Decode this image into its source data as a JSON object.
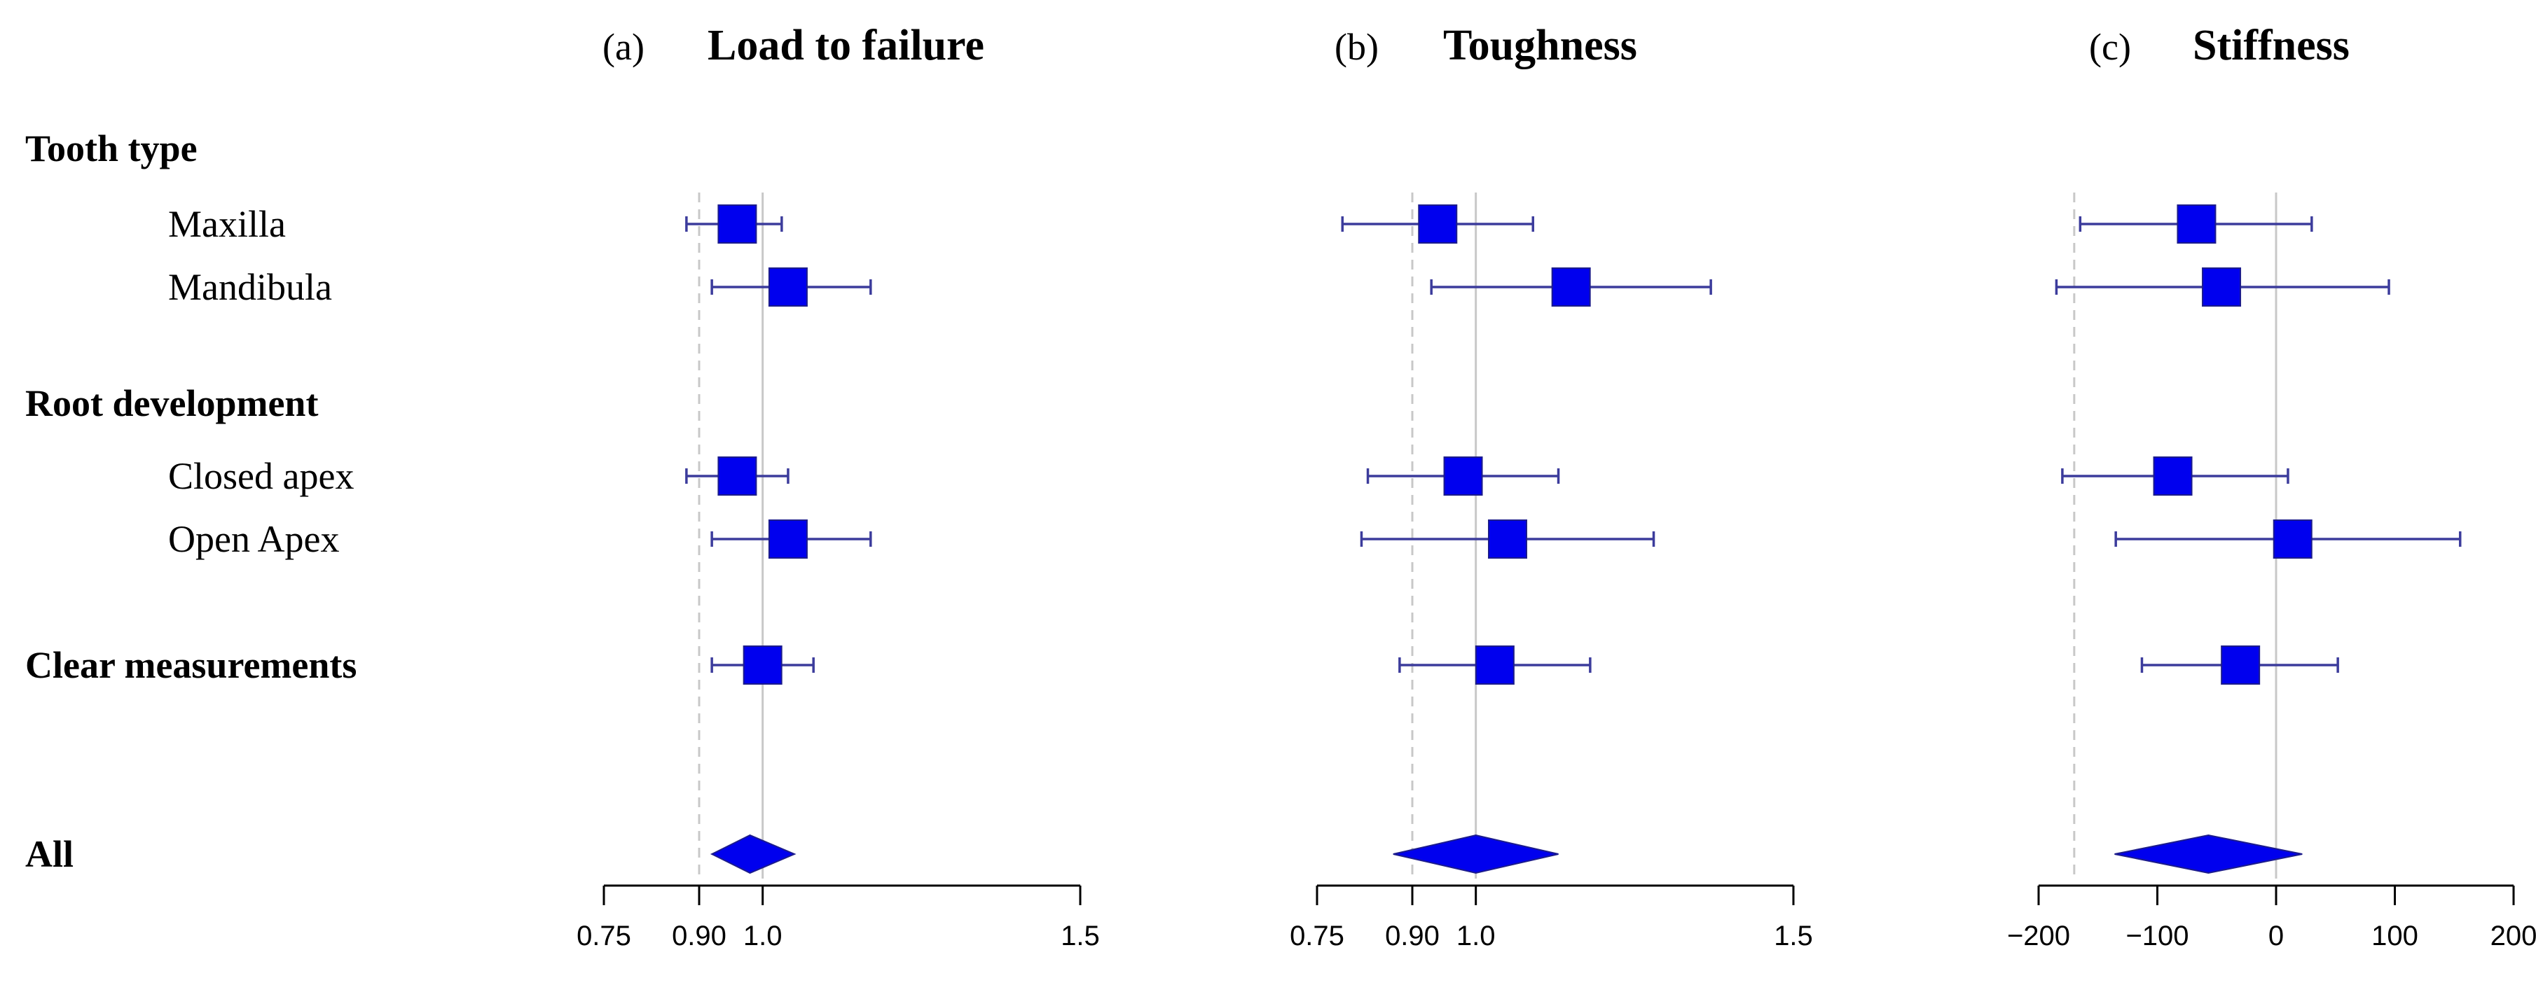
{
  "chart_data": {
    "type": "forest",
    "rows": [
      {
        "key": "tooth_type",
        "label": "Tooth type",
        "heading": true
      },
      {
        "key": "maxilla",
        "label": "Maxilla",
        "heading": false
      },
      {
        "key": "mandibula",
        "label": "Mandibula",
        "heading": false
      },
      {
        "key": "root_development",
        "label": "Root development",
        "heading": true
      },
      {
        "key": "closed_apex",
        "label": "Closed apex",
        "heading": false
      },
      {
        "key": "open_apex",
        "label": "Open Apex",
        "heading": false
      },
      {
        "key": "clear_measurements",
        "label": "Clear measurements",
        "heading": true
      },
      {
        "key": "all",
        "label": "All",
        "heading": true
      }
    ],
    "panels": [
      {
        "id": "a",
        "letter": "(a)",
        "title": "Load to failure",
        "xlim": [
          0.75,
          1.5
        ],
        "ticks": [
          0.75,
          0.9,
          1.0,
          1.5
        ],
        "tick_labels": [
          "0.75",
          "0.90",
          "1.0",
          "1.5"
        ],
        "dashed_ref": 0.9,
        "solid_ref": 1.0,
        "estimates": [
          {
            "row": "maxilla",
            "est": 0.96,
            "lo": 0.88,
            "hi": 1.03,
            "color": "#0000ee"
          },
          {
            "row": "mandibula",
            "est": 1.04,
            "lo": 0.92,
            "hi": 1.17,
            "color": "#0000ee"
          },
          {
            "row": "closed_apex",
            "est": 0.96,
            "lo": 0.88,
            "hi": 1.04,
            "color": "#0000ee"
          },
          {
            "row": "open_apex",
            "est": 1.04,
            "lo": 0.92,
            "hi": 1.17,
            "color": "#0000ee"
          },
          {
            "row": "clear_measurements",
            "est": 1.0,
            "lo": 0.92,
            "hi": 1.08,
            "color": "#0000ee"
          }
        ],
        "summary": {
          "row": "all",
          "est": 0.98,
          "lo": 0.92,
          "hi": 1.05
        }
      },
      {
        "id": "b",
        "letter": "(b)",
        "title": "Toughness",
        "xlim": [
          0.75,
          1.5
        ],
        "ticks": [
          0.75,
          0.9,
          1.0,
          1.5
        ],
        "tick_labels": [
          "0.75",
          "0.90",
          "1.0",
          "1.5"
        ],
        "dashed_ref": 0.9,
        "solid_ref": 1.0,
        "estimates": [
          {
            "row": "maxilla",
            "est": 0.94,
            "lo": 0.79,
            "hi": 1.09,
            "color": "#0000ee"
          },
          {
            "row": "mandibula",
            "est": 1.15,
            "lo": 0.93,
            "hi": 1.37,
            "color": "#0000ee"
          },
          {
            "row": "closed_apex",
            "est": 0.98,
            "lo": 0.83,
            "hi": 1.13,
            "color": "#0000ee"
          },
          {
            "row": "open_apex",
            "est": 1.05,
            "lo": 0.82,
            "hi": 1.28,
            "color": "#0000ee"
          },
          {
            "row": "clear_measurements",
            "est": 1.03,
            "lo": 0.88,
            "hi": 1.18,
            "color": "#0000ee"
          }
        ],
        "summary": {
          "row": "all",
          "est": 1.0,
          "lo": 0.87,
          "hi": 1.13
        }
      },
      {
        "id": "c",
        "letter": "(c)",
        "title": "Stiffness",
        "xlim": [
          -200,
          200
        ],
        "ticks": [
          -200,
          -100,
          0,
          100,
          200
        ],
        "tick_labels": [
          "−200",
          "−100",
          "0",
          "100",
          "200"
        ],
        "dashed_ref": -170,
        "solid_ref": 0,
        "estimates": [
          {
            "row": "maxilla",
            "est": -67,
            "lo": -165,
            "hi": 30,
            "color": "#0000ee"
          },
          {
            "row": "mandibula",
            "est": -46,
            "lo": -185,
            "hi": 95,
            "color": "#0000ee"
          },
          {
            "row": "closed_apex",
            "est": -87,
            "lo": -180,
            "hi": 10,
            "color": "#0000ee"
          },
          {
            "row": "open_apex",
            "est": 14,
            "lo": -135,
            "hi": 155,
            "color": "#0000ee"
          },
          {
            "row": "clear_measurements",
            "est": -30,
            "lo": -113,
            "hi": 52,
            "color": "#0000ee"
          }
        ],
        "summary": {
          "row": "all",
          "est": -57,
          "lo": -136,
          "hi": 22
        }
      }
    ]
  }
}
